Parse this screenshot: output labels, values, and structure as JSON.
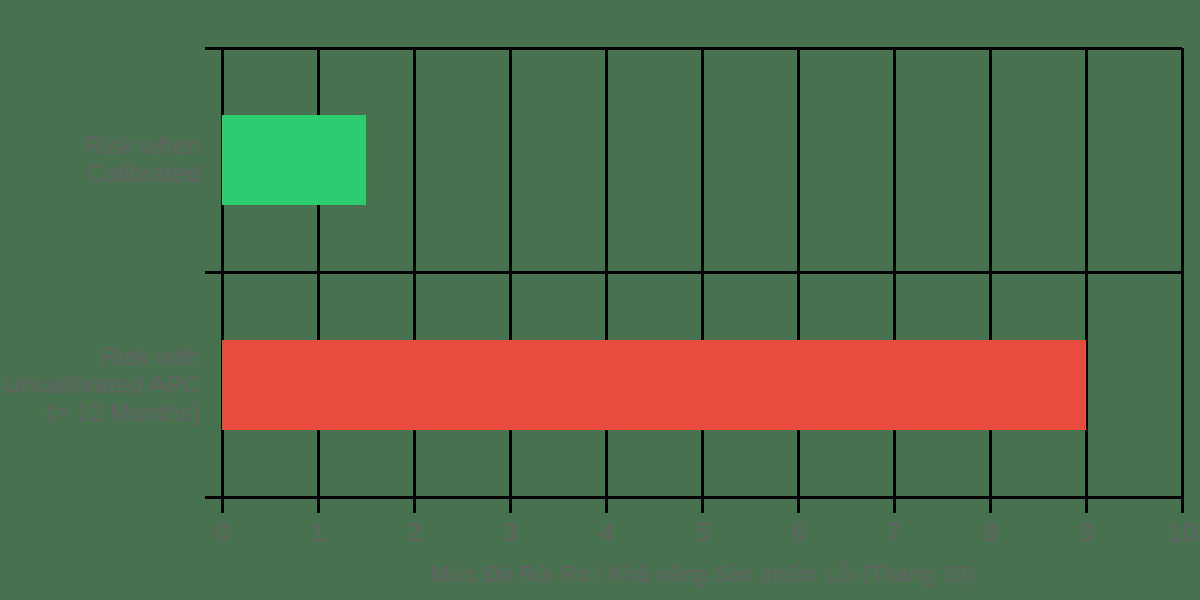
{
  "chart_data": {
    "type": "bar",
    "orientation": "horizontal",
    "categories": [
      "Risk when\nCalibrated",
      "Risk with\nUncalibrated APC\n(> 12 Months)"
    ],
    "values": [
      1.5,
      9
    ],
    "bar_colors": [
      "#2ecc71",
      "#e74c3c"
    ],
    "xlabel": "Mức Độ Rủi Ro / Khả năng Sản phẩm Lỗi (Thang 10)",
    "ylabel": "",
    "xlim": [
      0,
      10
    ],
    "xticks": [
      0,
      1,
      2,
      3,
      4,
      5,
      6,
      7,
      8,
      9,
      10
    ],
    "grid": true,
    "legend": false,
    "colors": {
      "background": "#48714F",
      "gridline": "#000000",
      "text": "#636363"
    }
  }
}
